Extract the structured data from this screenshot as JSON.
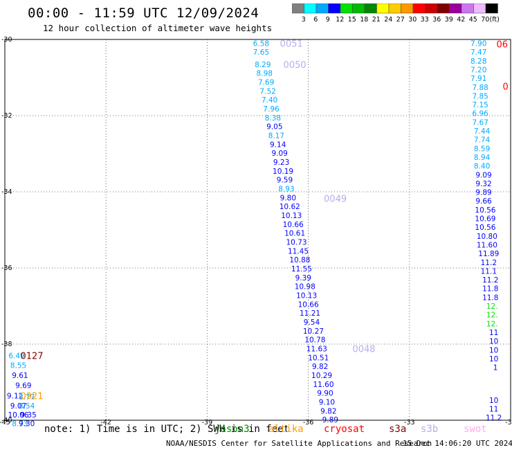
{
  "header": {
    "title": "00:00 - 11:59 UTC 12/09/2024",
    "subtitle": "12 hour collection of altimeter wave heights"
  },
  "colorbar": {
    "bins": [
      {
        "label": "3",
        "color": "#808080"
      },
      {
        "label": "6",
        "color": "#00ffff"
      },
      {
        "label": "9",
        "color": "#00aaff"
      },
      {
        "label": "12",
        "color": "#0000ff"
      },
      {
        "label": "15",
        "color": "#00e000"
      },
      {
        "label": "18",
        "color": "#00bb00"
      },
      {
        "label": "21",
        "color": "#008800"
      },
      {
        "label": "24",
        "color": "#ffff00"
      },
      {
        "label": "27",
        "color": "#ffcc00"
      },
      {
        "label": "30",
        "color": "#ff9900"
      },
      {
        "label": "33",
        "color": "#ff0000"
      },
      {
        "label": "36",
        "color": "#cc0000"
      },
      {
        "label": "39",
        "color": "#800000"
      },
      {
        "label": "42",
        "color": "#990099"
      },
      {
        "label": "45",
        "color": "#cc77ee"
      },
      {
        "label": "70",
        "color": "#eebbff"
      },
      {
        "label": "",
        "color": "#000000"
      }
    ],
    "unit": "(ft)"
  },
  "footer": {
    "note": "note: 1) Time is in UTC; 2) SWH is in feet",
    "credit": "NOAA/NESDIS Center for Satellite Applications and Research",
    "date": "15 Dec 14:06:20 UTC 2024",
    "satellites": [
      {
        "name": "jason3",
        "color": "#008800"
      },
      {
        "name": "altika",
        "color": "#ff9900"
      },
      {
        "name": "cryosat",
        "color": "#ff0000"
      },
      {
        "name": "s3a",
        "color": "#800000"
      },
      {
        "name": "s3b",
        "color": "#bbaaee"
      },
      {
        "name": "swot",
        "color": "#ffaaee"
      }
    ]
  },
  "chart_data": {
    "type": "scatter",
    "xlim": [
      -45,
      -30
    ],
    "ylim": [
      -40,
      -30
    ],
    "x_ticks": [
      "-45",
      "-42",
      "-39",
      "-36",
      "-33",
      "-30"
    ],
    "y_ticks": [
      "-30",
      "-32",
      "-34",
      "-36",
      "-38",
      "-40"
    ],
    "grid": true,
    "tracks": [
      {
        "pass_labels": [
          {
            "text": "0051",
            "x": -36.5,
            "y": -30.1,
            "color": "#bbaaee"
          },
          {
            "text": "0050",
            "x": -36.4,
            "y": -30.65,
            "color": "#bbaaee"
          },
          {
            "text": "0049",
            "x": -35.2,
            "y": -34.17,
            "color": "#bbaaee"
          },
          {
            "text": "0048",
            "x": -34.35,
            "y": -38.12,
            "color": "#bbaaee"
          }
        ],
        "points": [
          {
            "x": -37.4,
            "y": -30.1,
            "v": "6.58",
            "color": "#00aaff"
          },
          {
            "x": -37.4,
            "y": -30.33,
            "v": "7.65",
            "color": "#00aaff"
          },
          {
            "x": -37.35,
            "y": -30.65,
            "v": "8.29",
            "color": "#00aaff"
          },
          {
            "x": -37.3,
            "y": -30.88,
            "v": "8.98",
            "color": "#00aaff"
          },
          {
            "x": -37.25,
            "y": -31.12,
            "v": "7.69",
            "color": "#00aaff"
          },
          {
            "x": -37.2,
            "y": -31.35,
            "v": "7.52",
            "color": "#00aaff"
          },
          {
            "x": -37.15,
            "y": -31.58,
            "v": "7.40",
            "color": "#00aaff"
          },
          {
            "x": -37.1,
            "y": -31.82,
            "v": "7.96",
            "color": "#00aaff"
          },
          {
            "x": -37.05,
            "y": -32.05,
            "v": "8.38",
            "color": "#00aaff"
          },
          {
            "x": -37.0,
            "y": -32.28,
            "v": "9.05",
            "color": "#0000ff"
          },
          {
            "x": -36.95,
            "y": -32.52,
            "v": "8.17",
            "color": "#00aaff"
          },
          {
            "x": -36.9,
            "y": -32.75,
            "v": "9.14",
            "color": "#0000ff"
          },
          {
            "x": -36.85,
            "y": -32.98,
            "v": "9.09",
            "color": "#0000ff"
          },
          {
            "x": -36.8,
            "y": -33.22,
            "v": "9.23",
            "color": "#0000ff"
          },
          {
            "x": -36.75,
            "y": -33.45,
            "v": "10.19",
            "color": "#0000ff"
          },
          {
            "x": -36.7,
            "y": -33.68,
            "v": "9.59",
            "color": "#0000ff"
          },
          {
            "x": -36.65,
            "y": -33.92,
            "v": "8.93",
            "color": "#00aaff"
          },
          {
            "x": -36.6,
            "y": -34.15,
            "v": "9.80",
            "color": "#0000ff"
          },
          {
            "x": -36.55,
            "y": -34.38,
            "v": "10.62",
            "color": "#0000ff"
          },
          {
            "x": -36.5,
            "y": -34.62,
            "v": "10.13",
            "color": "#0000ff"
          },
          {
            "x": -36.45,
            "y": -34.85,
            "v": "10.66",
            "color": "#0000ff"
          },
          {
            "x": -36.4,
            "y": -35.08,
            "v": "10.61",
            "color": "#0000ff"
          },
          {
            "x": -36.35,
            "y": -35.32,
            "v": "10.73",
            "color": "#0000ff"
          },
          {
            "x": -36.3,
            "y": -35.55,
            "v": "11.45",
            "color": "#0000ff"
          },
          {
            "x": -36.25,
            "y": -35.78,
            "v": "10.88",
            "color": "#0000ff"
          },
          {
            "x": -36.2,
            "y": -36.02,
            "v": "11.55",
            "color": "#0000ff"
          },
          {
            "x": -36.15,
            "y": -36.25,
            "v": "9.39",
            "color": "#0000ff"
          },
          {
            "x": -36.1,
            "y": -36.48,
            "v": "10.98",
            "color": "#0000ff"
          },
          {
            "x": -36.05,
            "y": -36.72,
            "v": "10.13",
            "color": "#0000ff"
          },
          {
            "x": -36.0,
            "y": -36.95,
            "v": "10.66",
            "color": "#0000ff"
          },
          {
            "x": -35.95,
            "y": -37.18,
            "v": "11.21",
            "color": "#0000ff"
          },
          {
            "x": -35.9,
            "y": -37.42,
            "v": "9.54",
            "color": "#0000ff"
          },
          {
            "x": -35.85,
            "y": -37.65,
            "v": "10.27",
            "color": "#0000ff"
          },
          {
            "x": -35.8,
            "y": -37.88,
            "v": "10.78",
            "color": "#0000ff"
          },
          {
            "x": -35.75,
            "y": -38.12,
            "v": "11.63",
            "color": "#0000ff"
          },
          {
            "x": -35.7,
            "y": -38.35,
            "v": "10.51",
            "color": "#0000ff"
          },
          {
            "x": -35.65,
            "y": -38.58,
            "v": "9.82",
            "color": "#0000ff"
          },
          {
            "x": -35.6,
            "y": -38.82,
            "v": "10.29",
            "color": "#0000ff"
          },
          {
            "x": -35.55,
            "y": -39.05,
            "v": "11.60",
            "color": "#0000ff"
          },
          {
            "x": -35.5,
            "y": -39.28,
            "v": "9.90",
            "color": "#0000ff"
          },
          {
            "x": -35.45,
            "y": -39.52,
            "v": "9.10",
            "color": "#0000ff"
          },
          {
            "x": -35.4,
            "y": -39.75,
            "v": "9.82",
            "color": "#0000ff"
          },
          {
            "x": -35.35,
            "y": -39.98,
            "v": "9.89",
            "color": "#0000ff"
          }
        ]
      },
      {
        "pass_labels": [
          {
            "text": "06",
            "x": -30.25,
            "y": -30.12,
            "color": "#ff0000"
          },
          {
            "text": "0",
            "x": -30.15,
            "y": -31.23,
            "color": "#ff0000"
          }
        ],
        "points": [
          {
            "x": -30.95,
            "y": -30.1,
            "v": "7.90",
            "color": "#00aaff"
          },
          {
            "x": -30.95,
            "y": -30.33,
            "v": "7.47",
            "color": "#00aaff"
          },
          {
            "x": -30.95,
            "y": -30.56,
            "v": "8.28",
            "color": "#00aaff"
          },
          {
            "x": -30.95,
            "y": -30.79,
            "v": "7.20",
            "color": "#00aaff"
          },
          {
            "x": -30.95,
            "y": -31.02,
            "v": "7.91",
            "color": "#00aaff"
          },
          {
            "x": -30.9,
            "y": -31.25,
            "v": "7.88",
            "color": "#00aaff"
          },
          {
            "x": -30.9,
            "y": -31.48,
            "v": "7.85",
            "color": "#00aaff"
          },
          {
            "x": -30.9,
            "y": -31.71,
            "v": "7.15",
            "color": "#00aaff"
          },
          {
            "x": -30.9,
            "y": -31.94,
            "v": "6.96",
            "color": "#00aaff"
          },
          {
            "x": -30.9,
            "y": -32.17,
            "v": "7.67",
            "color": "#00aaff"
          },
          {
            "x": -30.85,
            "y": -32.4,
            "v": "7.44",
            "color": "#00aaff"
          },
          {
            "x": -30.85,
            "y": -32.63,
            "v": "7.74",
            "color": "#00aaff"
          },
          {
            "x": -30.85,
            "y": -32.86,
            "v": "8.59",
            "color": "#00aaff"
          },
          {
            "x": -30.85,
            "y": -33.09,
            "v": "8.94",
            "color": "#00aaff"
          },
          {
            "x": -30.85,
            "y": -33.32,
            "v": "8.40",
            "color": "#00aaff"
          },
          {
            "x": -30.8,
            "y": -33.55,
            "v": "9.09",
            "color": "#0000ff"
          },
          {
            "x": -30.8,
            "y": -33.78,
            "v": "9.32",
            "color": "#0000ff"
          },
          {
            "x": -30.8,
            "y": -34.01,
            "v": "9.89",
            "color": "#0000ff"
          },
          {
            "x": -30.8,
            "y": -34.24,
            "v": "9.66",
            "color": "#0000ff"
          },
          {
            "x": -30.75,
            "y": -34.47,
            "v": "10.56",
            "color": "#0000ff"
          },
          {
            "x": -30.75,
            "y": -34.7,
            "v": "10.69",
            "color": "#0000ff"
          },
          {
            "x": -30.75,
            "y": -34.93,
            "v": "10.56",
            "color": "#0000ff"
          },
          {
            "x": -30.7,
            "y": -35.16,
            "v": "10.80",
            "color": "#0000ff"
          },
          {
            "x": -30.7,
            "y": -35.39,
            "v": "11.60",
            "color": "#0000ff"
          },
          {
            "x": -30.65,
            "y": -35.62,
            "v": "11.89",
            "color": "#0000ff"
          },
          {
            "x": -30.65,
            "y": -35.85,
            "v": "11.2",
            "color": "#0000ff"
          },
          {
            "x": -30.65,
            "y": -36.08,
            "v": "11.1",
            "color": "#0000ff"
          },
          {
            "x": -30.6,
            "y": -36.31,
            "v": "11.2",
            "color": "#0000ff"
          },
          {
            "x": -30.6,
            "y": -36.54,
            "v": "11.8",
            "color": "#0000ff"
          },
          {
            "x": -30.6,
            "y": -36.77,
            "v": "11.8",
            "color": "#0000ff"
          },
          {
            "x": -30.55,
            "y": -37.0,
            "v": "12.",
            "color": "#00e000"
          },
          {
            "x": -30.55,
            "y": -37.23,
            "v": "12.",
            "color": "#00e000"
          },
          {
            "x": -30.55,
            "y": -37.46,
            "v": "12.",
            "color": "#00e000"
          },
          {
            "x": -30.5,
            "y": -37.69,
            "v": "11",
            "color": "#0000ff"
          },
          {
            "x": -30.5,
            "y": -37.92,
            "v": "10",
            "color": "#0000ff"
          },
          {
            "x": -30.5,
            "y": -38.15,
            "v": "10",
            "color": "#0000ff"
          },
          {
            "x": -30.5,
            "y": -38.38,
            "v": "10",
            "color": "#0000ff"
          },
          {
            "x": -30.45,
            "y": -38.61,
            "v": "1",
            "color": "#0000ff"
          },
          {
            "x": -30.5,
            "y": -39.47,
            "v": "10",
            "color": "#0000ff"
          },
          {
            "x": -30.5,
            "y": -39.7,
            "v": "11",
            "color": "#0000ff"
          },
          {
            "x": -30.5,
            "y": -39.93,
            "v": "11.2",
            "color": "#0000ff"
          }
        ]
      },
      {
        "pass_labels": [
          {
            "text": "0127",
            "x": -44.2,
            "y": -38.3,
            "color": "#800000"
          },
          {
            "text": "0921",
            "x": -44.2,
            "y": -39.35,
            "color": "#ff9900"
          }
        ],
        "points": [
          {
            "x": -44.65,
            "y": -38.3,
            "v": "6.49",
            "color": "#00aaff"
          },
          {
            "x": -44.6,
            "y": -38.55,
            "v": "8.55",
            "color": "#00aaff"
          },
          {
            "x": -44.55,
            "y": -38.82,
            "v": "9.61",
            "color": "#0000ff"
          },
          {
            "x": -44.45,
            "y": -39.08,
            "v": "9.69",
            "color": "#0000ff"
          },
          {
            "x": -44.7,
            "y": -39.35,
            "v": "9.12",
            "color": "#0000ff"
          },
          {
            "x": -44.35,
            "y": -39.38,
            "v": "8.77",
            "color": "#00aaff"
          },
          {
            "x": -44.6,
            "y": -39.62,
            "v": "9.07",
            "color": "#0000ff"
          },
          {
            "x": -44.35,
            "y": -39.62,
            "v": "8.54",
            "color": "#00aaff"
          },
          {
            "x": -44.6,
            "y": -39.85,
            "v": "10.06",
            "color": "#0000ff"
          },
          {
            "x": -44.3,
            "y": -39.85,
            "v": "9.35",
            "color": "#0000ff"
          },
          {
            "x": -44.55,
            "y": -40.08,
            "v": "8.73",
            "color": "#00aaff"
          },
          {
            "x": -44.35,
            "y": -40.08,
            "v": "9.30",
            "color": "#0000ff"
          }
        ]
      }
    ]
  }
}
